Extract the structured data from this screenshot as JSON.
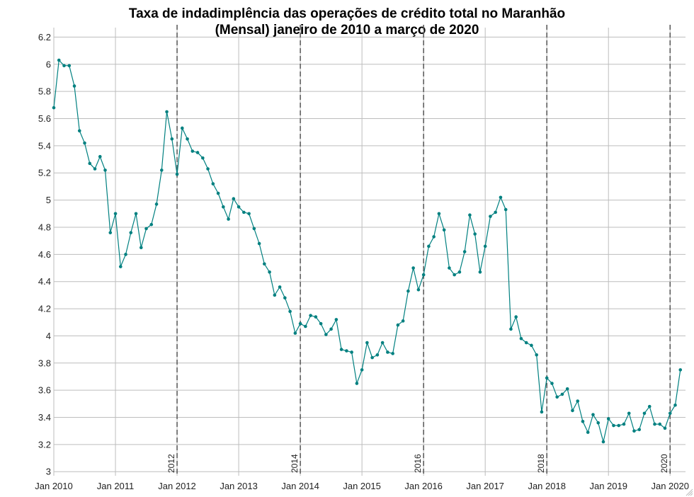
{
  "chart_data": {
    "type": "line",
    "title": "Taxa de indadimplência das operações de crédito total no Maranhão",
    "subtitle": "(Mensal) janeiro de 2010 a março de 2020",
    "xlabel": "",
    "ylabel": "",
    "x_start": "2010-01",
    "x_end": "2020-03",
    "ylim": [
      2.97,
      6.27
    ],
    "xlim": [
      "2010-01",
      "2020-04"
    ],
    "grid": true,
    "line_color": "#008080",
    "y_ticks": [
      3,
      3.2,
      3.4,
      3.6,
      3.8,
      4,
      4.2,
      4.4,
      4.6,
      4.8,
      5,
      5.2,
      5.4,
      5.6,
      5.8,
      6,
      6.2
    ],
    "x_ticks": [
      {
        "month": "2010-01",
        "label": "Jan 2010"
      },
      {
        "month": "2011-01",
        "label": "Jan 2011"
      },
      {
        "month": "2012-01",
        "label": "Jan 2012"
      },
      {
        "month": "2013-01",
        "label": "Jan 2013"
      },
      {
        "month": "2014-01",
        "label": "Jan 2014"
      },
      {
        "month": "2015-01",
        "label": "Jan 2015"
      },
      {
        "month": "2016-01",
        "label": "Jan 2016"
      },
      {
        "month": "2017-01",
        "label": "Jan 2017"
      },
      {
        "month": "2018-01",
        "label": "Jan 2018"
      },
      {
        "month": "2019-01",
        "label": "Jan 2019"
      },
      {
        "month": "2020-01",
        "label": "Jan 2020"
      }
    ],
    "vertical_lines": [
      {
        "month": "2012-01",
        "label": "2012"
      },
      {
        "month": "2014-01",
        "label": "2014"
      },
      {
        "month": "2016-01",
        "label": "2016"
      },
      {
        "month": "2018-01",
        "label": "2018"
      },
      {
        "month": "2020-01",
        "label": "2020"
      }
    ],
    "series": [
      {
        "values": [
          5.68,
          6.03,
          5.99,
          5.99,
          5.84,
          5.51,
          5.42,
          5.27,
          5.23,
          5.32,
          5.22,
          4.76,
          4.9,
          4.51,
          4.6,
          4.76,
          4.9,
          4.65,
          4.79,
          4.82,
          4.97,
          5.22,
          5.65,
          5.45,
          5.19,
          5.53,
          5.45,
          5.36,
          5.35,
          5.31,
          5.23,
          5.12,
          5.05,
          4.95,
          4.86,
          5.01,
          4.95,
          4.91,
          4.9,
          4.79,
          4.68,
          4.53,
          4.47,
          4.3,
          4.36,
          4.28,
          4.18,
          4.02,
          4.09,
          4.07,
          4.15,
          4.14,
          4.09,
          4.01,
          4.05,
          4.12,
          3.9,
          3.89,
          3.88,
          3.65,
          3.75,
          3.95,
          3.84,
          3.86,
          3.95,
          3.88,
          3.87,
          4.08,
          4.11,
          4.33,
          4.5,
          4.34,
          4.45,
          4.66,
          4.73,
          4.9,
          4.78,
          4.5,
          4.45,
          4.47,
          4.62,
          4.89,
          4.75,
          4.47,
          4.66,
          4.88,
          4.91,
          5.02,
          4.93,
          4.05,
          4.14,
          3.98,
          3.95,
          3.93,
          3.86,
          3.44,
          3.69,
          3.65,
          3.55,
          3.57,
          3.61,
          3.45,
          3.52,
          3.37,
          3.29,
          3.42,
          3.36,
          3.22,
          3.39,
          3.34,
          3.34,
          3.35,
          3.43,
          3.3,
          3.31,
          3.43,
          3.48,
          3.35,
          3.35,
          3.32,
          3.43,
          3.49,
          3.75
        ]
      }
    ]
  }
}
